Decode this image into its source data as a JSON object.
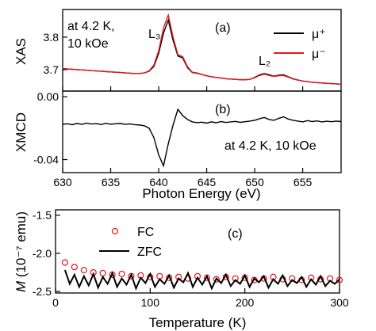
{
  "chart_data": [
    {
      "type": "line",
      "ylabel": "XAS",
      "panel_label": "(a)",
      "annotation_lines": [
        "at 4.2 K,",
        "10 kOe"
      ],
      "peak_labels": [
        "L₃",
        "L₂"
      ],
      "xlim": [
        630,
        659
      ],
      "xticks": [
        630,
        635,
        640,
        645,
        650,
        655
      ],
      "xtick_labels": false,
      "ylim": [
        3.634,
        3.885
      ],
      "yticks": [
        3.7,
        3.8
      ],
      "legend": "upper right",
      "x": [
        630,
        630.5,
        631,
        631.5,
        632,
        632.5,
        633,
        633.5,
        634,
        634.5,
        635,
        635.5,
        636,
        636.5,
        637,
        637.5,
        638,
        638.5,
        639,
        639.5,
        640,
        640.5,
        641,
        641.5,
        642,
        642.5,
        643,
        643.5,
        644,
        644.5,
        645,
        645.5,
        646,
        646.5,
        647,
        647.5,
        648,
        648.5,
        649,
        649.5,
        650,
        650.5,
        651,
        651.5,
        652,
        652.5,
        653,
        653.5,
        654,
        654.5,
        655,
        655.5,
        656,
        656.5,
        657,
        657.5,
        658,
        658.5,
        659
      ],
      "series": [
        {
          "name": "μ⁺",
          "color": "#000000",
          "values": [
            3.703,
            3.702,
            3.701,
            3.7,
            3.699,
            3.698,
            3.697,
            3.696,
            3.695,
            3.694,
            3.693,
            3.692,
            3.691,
            3.69,
            3.689,
            3.688,
            3.688,
            3.69,
            3.695,
            3.71,
            3.75,
            3.812,
            3.852,
            3.79,
            3.742,
            3.736,
            3.706,
            3.691,
            3.689,
            3.685,
            3.681,
            3.678,
            3.676,
            3.674,
            3.672,
            3.671,
            3.67,
            3.669,
            3.669,
            3.67,
            3.676,
            3.684,
            3.688,
            3.684,
            3.68,
            3.683,
            3.684,
            3.678,
            3.672,
            3.668,
            3.665,
            3.663,
            3.661,
            3.66,
            3.659,
            3.658,
            3.657,
            3.656,
            3.655
          ]
        },
        {
          "name": "μ⁻",
          "color": "#e8141c",
          "values": [
            3.703,
            3.702,
            3.701,
            3.7,
            3.699,
            3.698,
            3.697,
            3.696,
            3.695,
            3.694,
            3.693,
            3.692,
            3.691,
            3.69,
            3.689,
            3.688,
            3.688,
            3.69,
            3.696,
            3.714,
            3.758,
            3.828,
            3.868,
            3.8,
            3.746,
            3.74,
            3.709,
            3.692,
            3.69,
            3.685,
            3.681,
            3.678,
            3.676,
            3.674,
            3.672,
            3.671,
            3.67,
            3.669,
            3.669,
            3.67,
            3.675,
            3.682,
            3.686,
            3.682,
            3.679,
            3.681,
            3.682,
            3.677,
            3.671,
            3.668,
            3.665,
            3.663,
            3.661,
            3.66,
            3.659,
            3.658,
            3.657,
            3.656,
            3.655
          ]
        }
      ]
    },
    {
      "type": "line",
      "ylabel": "XMCD",
      "xlabel": "Photon Energy (eV)",
      "panel_label": "(b)",
      "annotation": "at 4.2 K, 10 kOe",
      "xlim": [
        630,
        659
      ],
      "xticks": [
        630,
        635,
        640,
        645,
        650,
        655
      ],
      "xtick_labels": true,
      "ylim": [
        -0.0483,
        0.0036
      ],
      "yticks": [
        {
          "value": 0,
          "label": "0.00"
        },
        -0.04
      ],
      "x": [
        630,
        630.5,
        631,
        631.5,
        632,
        632.5,
        633,
        633.5,
        634,
        634.5,
        635,
        635.5,
        636,
        636.5,
        637,
        637.5,
        638,
        638.5,
        639,
        639.5,
        640,
        640.5,
        641,
        641.5,
        642,
        642.5,
        643,
        643.5,
        644,
        644.5,
        645,
        645.5,
        646,
        646.5,
        647,
        647.5,
        648,
        648.5,
        649,
        649.5,
        650,
        650.5,
        651,
        651.5,
        652,
        652.5,
        653,
        653.5,
        654,
        654.5,
        655,
        655.5,
        656,
        656.5,
        657,
        657.5,
        658,
        658.5,
        659
      ],
      "series": [
        {
          "color": "#000000",
          "values": [
            -0.0175,
            -0.0172,
            -0.0178,
            -0.017,
            -0.0176,
            -0.0168,
            -0.0174,
            -0.0171,
            -0.0177,
            -0.0169,
            -0.0175,
            -0.0172,
            -0.017,
            -0.0176,
            -0.0173,
            -0.0178,
            -0.018,
            -0.0185,
            -0.02,
            -0.026,
            -0.037,
            -0.044,
            -0.03,
            -0.018,
            -0.008,
            -0.012,
            -0.0145,
            -0.016,
            -0.0165,
            -0.0162,
            -0.0168,
            -0.016,
            -0.0166,
            -0.0158,
            -0.0164,
            -0.016,
            -0.0157,
            -0.0163,
            -0.0159,
            -0.0155,
            -0.015,
            -0.014,
            -0.0132,
            -0.0145,
            -0.015,
            -0.0138,
            -0.0128,
            -0.0142,
            -0.015,
            -0.0155,
            -0.016,
            -0.0152,
            -0.0158,
            -0.0154,
            -0.016,
            -0.0156,
            -0.0159,
            -0.0155,
            -0.0158
          ]
        }
      ]
    },
    {
      "type": "scatter",
      "ylabel_symbol": "M",
      "ylabel": "(10⁻⁷ emu)",
      "xlabel": "Temperature (K)",
      "panel_label": "(c)",
      "xlim": [
        0,
        300
      ],
      "xticks": [
        0,
        100,
        200,
        300
      ],
      "ylim": [
        -2.52,
        -1.43
      ],
      "yticks": [
        -1.5,
        {
          "value": -2,
          "label": "-2.0"
        },
        -2.5
      ],
      "legend": "upper left",
      "series": [
        {
          "name": "FC",
          "color": "#e8141c",
          "mode": "markers",
          "x": [
            10,
            20,
            30,
            40,
            50,
            60,
            70,
            80,
            90,
            100,
            110,
            120,
            130,
            140,
            150,
            160,
            170,
            180,
            190,
            200,
            210,
            220,
            230,
            240,
            250,
            260,
            270,
            280,
            290,
            300
          ],
          "values": [
            -2.12,
            -2.18,
            -2.22,
            -2.25,
            -2.26,
            -2.28,
            -2.27,
            -2.3,
            -2.29,
            -2.31,
            -2.3,
            -2.32,
            -2.31,
            -2.33,
            -2.3,
            -2.32,
            -2.34,
            -2.31,
            -2.33,
            -2.32,
            -2.35,
            -2.33,
            -2.31,
            -2.34,
            -2.33,
            -2.35,
            -2.32,
            -2.34,
            -2.33,
            -2.35
          ]
        },
        {
          "name": "ZFC",
          "color": "#000000",
          "mode": "lines",
          "x": [
            10,
            15,
            20,
            25,
            30,
            35,
            40,
            45,
            50,
            55,
            60,
            65,
            70,
            75,
            80,
            85,
            90,
            95,
            100,
            105,
            110,
            115,
            120,
            125,
            130,
            135,
            140,
            145,
            150,
            155,
            160,
            165,
            170,
            175,
            180,
            185,
            190,
            195,
            200,
            205,
            210,
            215,
            220,
            225,
            230,
            235,
            240,
            245,
            250,
            255,
            260,
            265,
            270,
            275,
            280,
            285,
            290,
            295,
            300
          ],
          "values": [
            -2.22,
            -2.4,
            -2.28,
            -2.44,
            -2.3,
            -2.42,
            -2.27,
            -2.45,
            -2.31,
            -2.4,
            -2.26,
            -2.44,
            -2.33,
            -2.41,
            -2.28,
            -2.46,
            -2.32,
            -2.39,
            -2.27,
            -2.44,
            -2.34,
            -2.4,
            -2.29,
            -2.45,
            -2.33,
            -2.38,
            -2.26,
            -2.44,
            -2.32,
            -2.41,
            -2.3,
            -2.46,
            -2.33,
            -2.39,
            -2.28,
            -2.43,
            -2.35,
            -2.4,
            -2.29,
            -2.44,
            -2.33,
            -2.38,
            -2.3,
            -2.45,
            -2.34,
            -2.4,
            -2.29,
            -2.43,
            -2.35,
            -2.39,
            -2.31,
            -2.44,
            -2.34,
            -2.41,
            -2.3,
            -2.43,
            -2.36,
            -2.4,
            -2.34
          ]
        }
      ]
    }
  ]
}
